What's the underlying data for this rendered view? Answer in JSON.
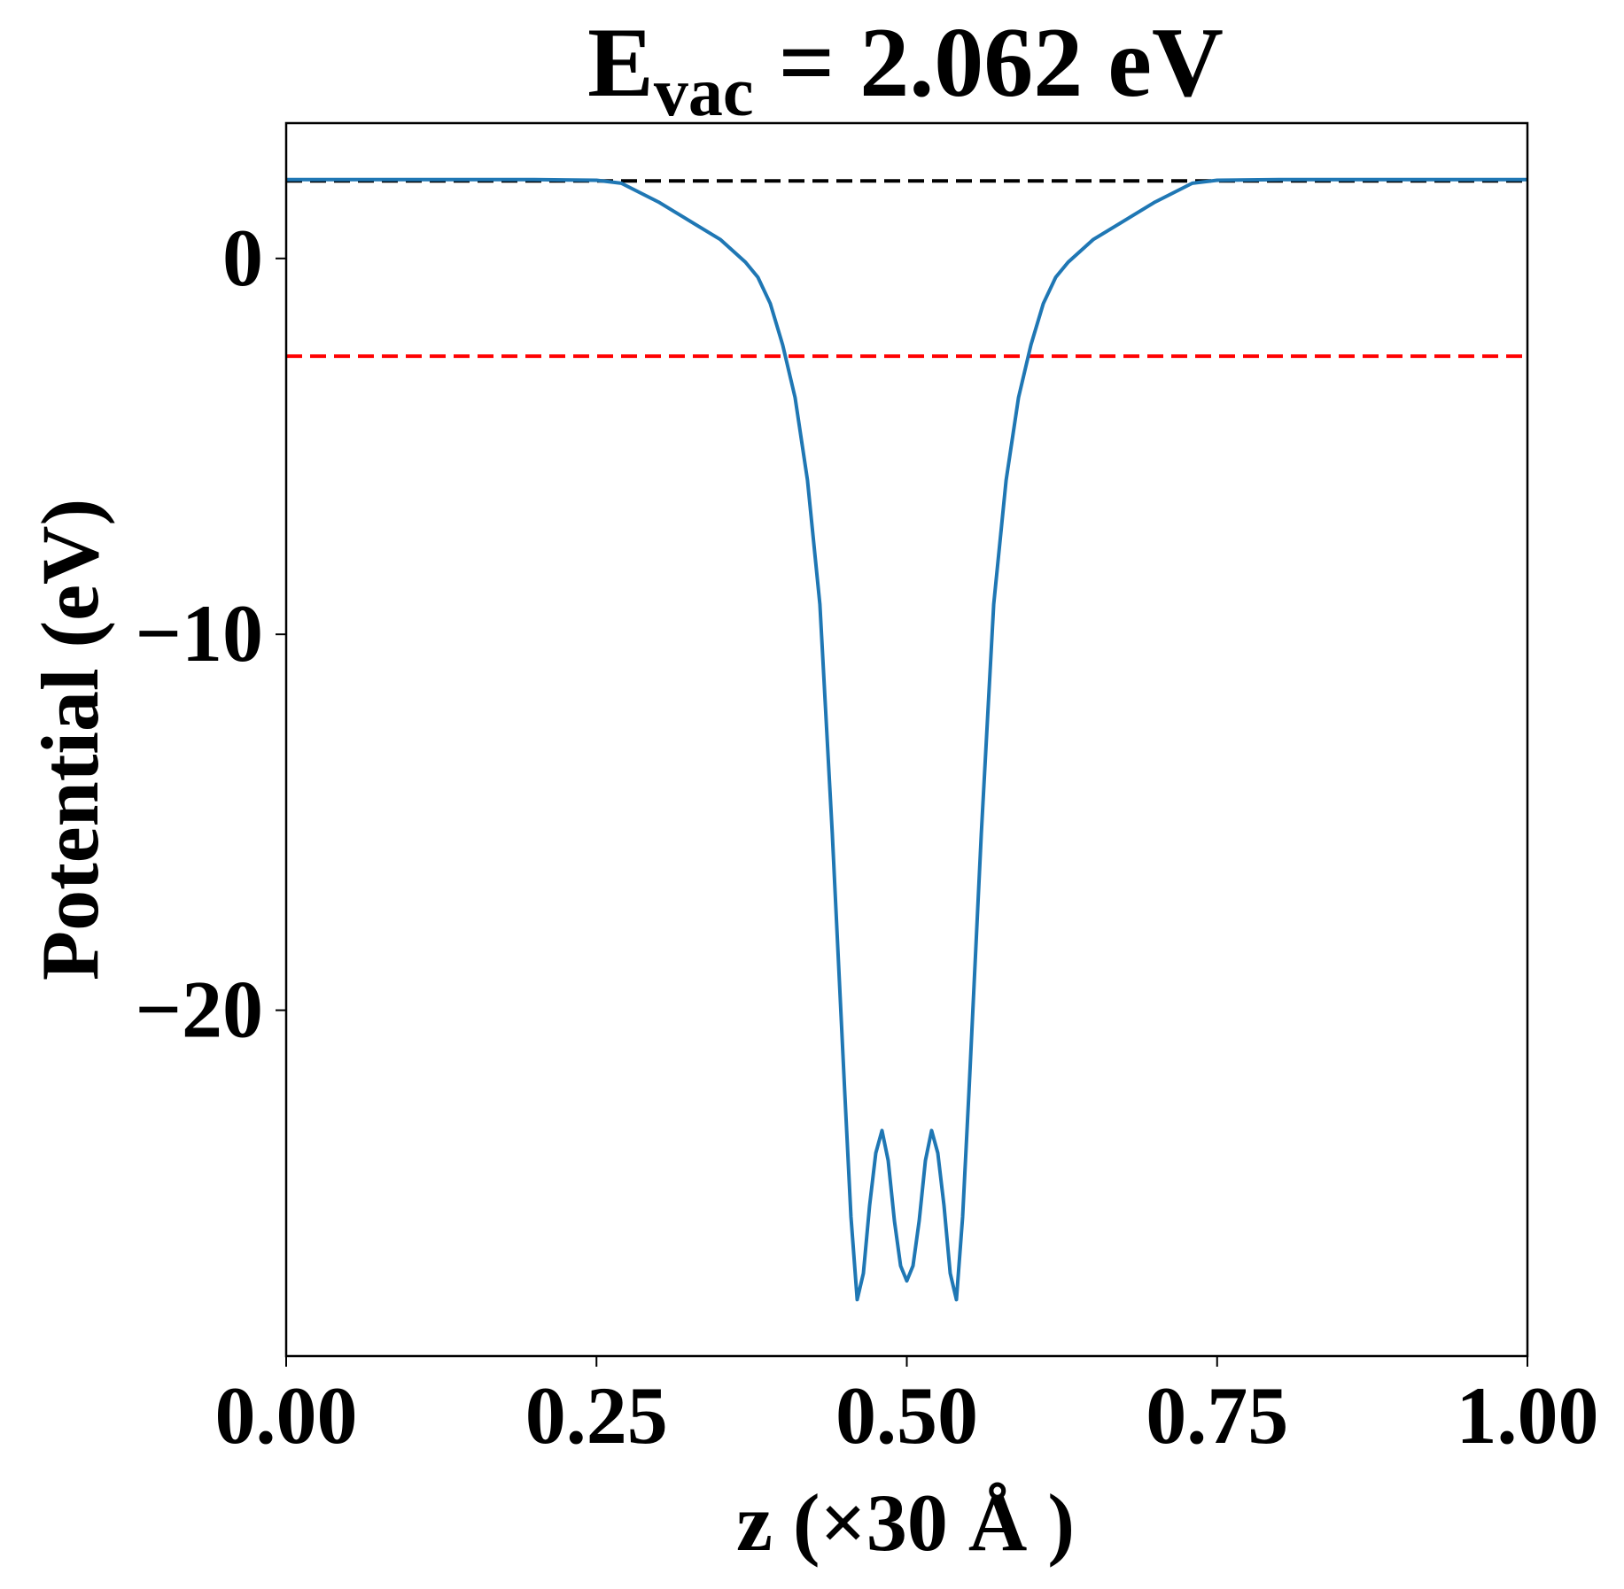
{
  "chart_data": {
    "type": "line",
    "title": "E",
    "title_subscript": "vac",
    "title_rest": " = 2.062 eV",
    "x_label": "z (×30 Å )",
    "y_label": "Potential (eV)",
    "xlim": [
      0,
      1
    ],
    "ylim": [
      -29.2,
      3.6
    ],
    "xticks": [
      {
        "value": 0,
        "label": "0.00"
      },
      {
        "value": 0.25,
        "label": "0.25"
      },
      {
        "value": 0.5,
        "label": "0.50"
      },
      {
        "value": 0.75,
        "label": "0.75"
      },
      {
        "value": 1,
        "label": "1.00"
      }
    ],
    "yticks": [
      {
        "value": -20,
        "label": "−20"
      },
      {
        "value": -10,
        "label": "−10"
      },
      0
    ],
    "hlines": [
      {
        "value": 2.062,
        "color": "#000000"
      },
      {
        "value": -2.6,
        "color": "#ff0000"
      }
    ],
    "x": [
      0,
      0.05,
      0.1,
      0.15,
      0.2,
      0.25,
      0.27,
      0.3,
      0.32,
      0.35,
      0.37,
      0.38,
      0.39,
      0.4,
      0.41,
      0.42,
      0.43,
      0.44,
      0.45,
      0.455,
      0.46,
      0.465,
      0.47,
      0.475,
      0.48,
      0.485,
      0.49,
      0.495,
      0.5,
      0.505,
      0.51,
      0.515,
      0.52,
      0.525,
      0.53,
      0.535,
      0.54,
      0.545,
      0.55,
      0.56,
      0.57,
      0.58,
      0.59,
      0.6,
      0.61,
      0.62,
      0.63,
      0.65,
      0.68,
      0.7,
      0.73,
      0.75,
      0.8,
      0.85,
      0.9,
      0.95,
      1
    ],
    "series": [
      {
        "color": "#1f77b4",
        "values": [
          2.1,
          2.1,
          2.1,
          2.1,
          2.1,
          2.08,
          2.0,
          1.5,
          1.1,
          0.5,
          -0.1,
          -0.5,
          -1.2,
          -2.3,
          -3.7,
          -5.9,
          -9.2,
          -15.3,
          -22.2,
          -25.5,
          -27.7,
          -27.0,
          -25.2,
          -23.8,
          -23.2,
          -24.0,
          -25.6,
          -26.8,
          -27.2,
          -26.8,
          -25.6,
          -24.0,
          -23.2,
          -23.8,
          -25.2,
          -27.0,
          -27.7,
          -25.5,
          -22.2,
          -15.3,
          -9.2,
          -5.9,
          -3.7,
          -2.3,
          -1.2,
          -0.5,
          -0.1,
          0.5,
          1.1,
          1.5,
          2.0,
          2.08,
          2.1,
          2.1,
          2.1,
          2.1,
          2.1
        ]
      }
    ]
  }
}
